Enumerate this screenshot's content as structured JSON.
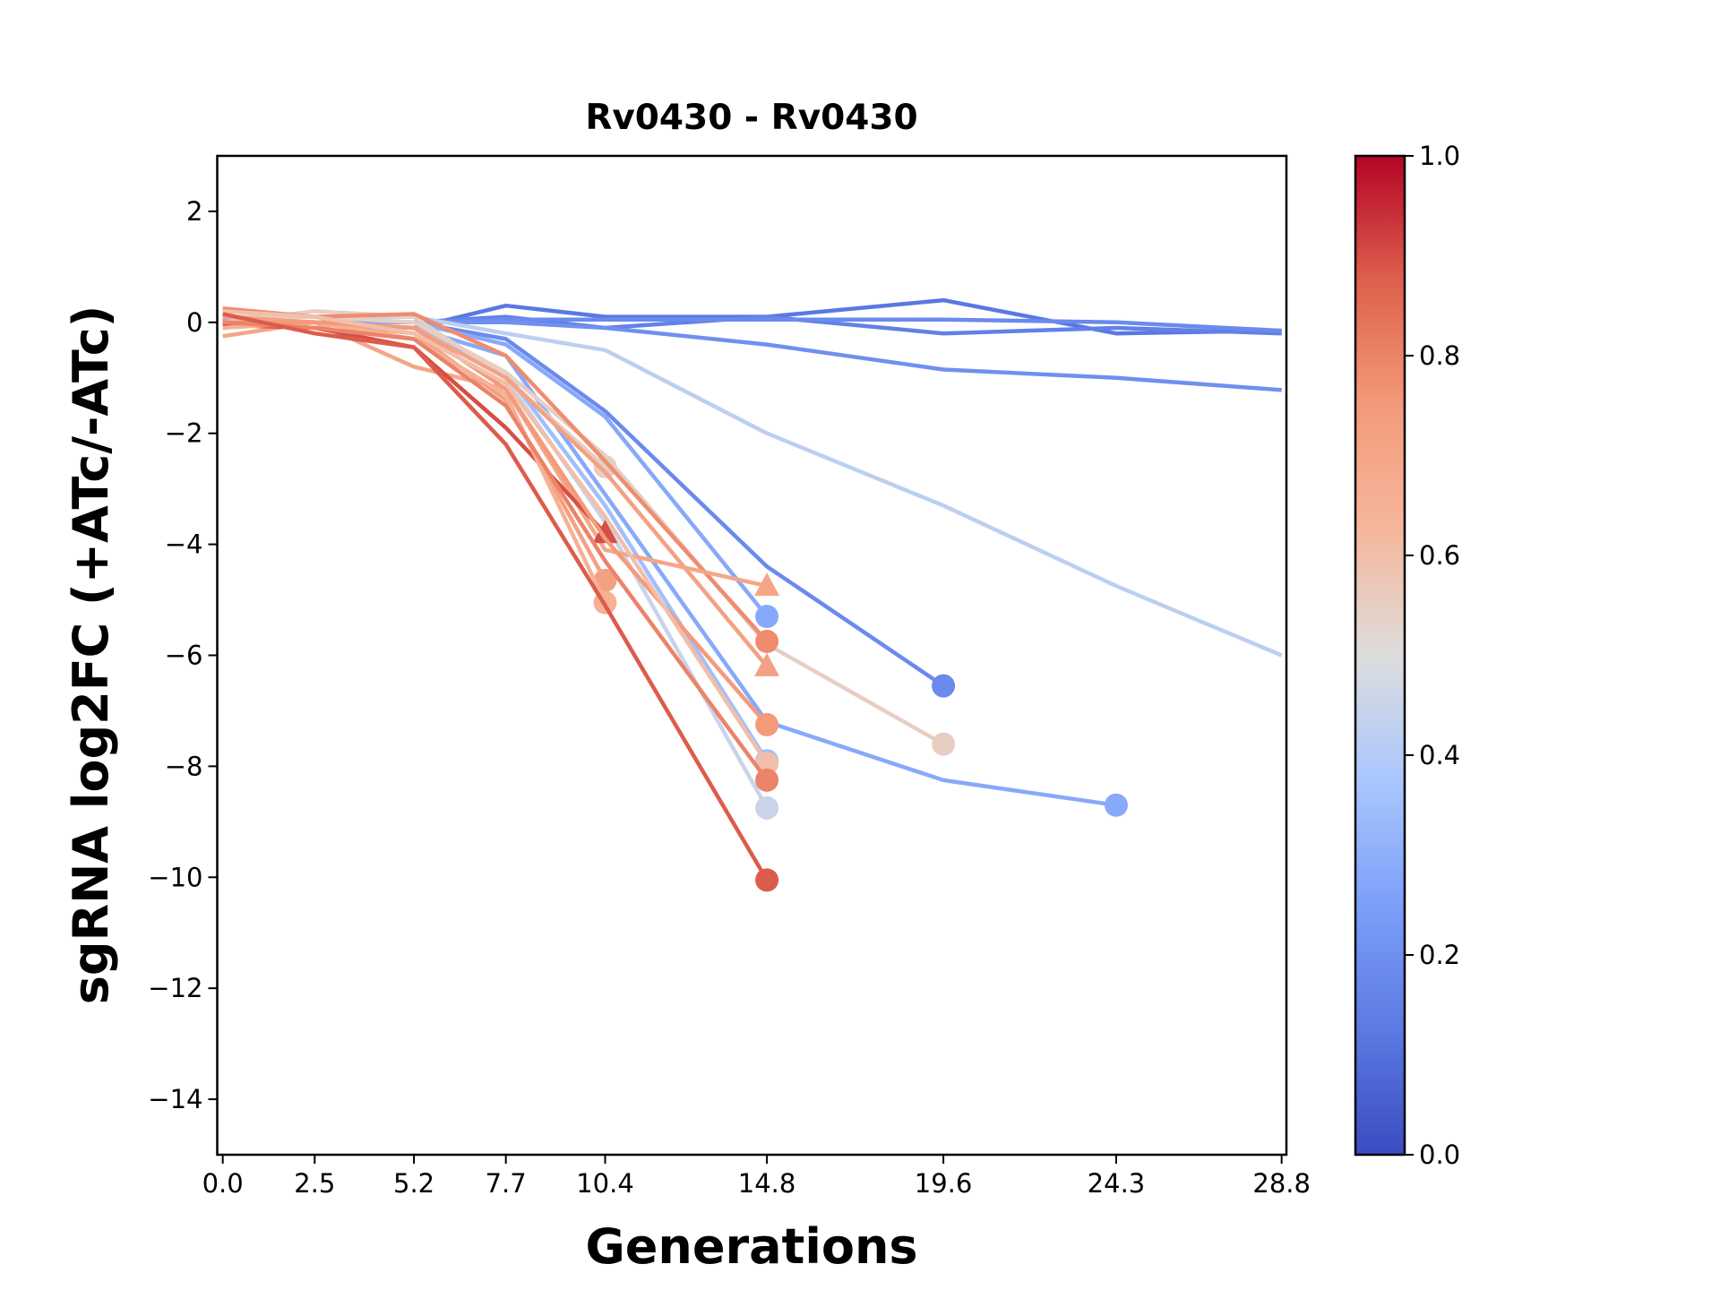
{
  "chart_data": {
    "type": "line",
    "title": "Rv0430 - Rv0430",
    "xlabel": "Generations",
    "ylabel": "sgRNA log2FC (+ATc/-ATc)",
    "xlim": [
      -0.15,
      28.93
    ],
    "ylim": [
      -15,
      3
    ],
    "xticks": [
      0.0,
      2.5,
      5.2,
      7.7,
      10.4,
      14.8,
      19.6,
      24.3,
      28.8
    ],
    "xtick_labels": [
      "0.0",
      "2.5",
      "5.2",
      "7.7",
      "10.4",
      "14.8",
      "19.6",
      "24.3",
      "28.8"
    ],
    "yticks": [
      2,
      0,
      -2,
      -4,
      -6,
      -8,
      -10,
      -12,
      -14
    ],
    "ytick_labels": [
      "2",
      "0",
      "−2",
      "−4",
      "−6",
      "−8",
      "−10",
      "−12",
      "−14"
    ],
    "grid": false,
    "colorbar": {
      "colormap": "coolwarm",
      "range": [
        0.0,
        1.0
      ],
      "ticks": [
        0.0,
        0.2,
        0.4,
        0.6,
        0.8,
        1.0
      ],
      "tick_labels": [
        "0.0",
        "0.2",
        "0.4",
        "0.6",
        "0.8",
        "1.0"
      ]
    },
    "series": [
      {
        "c": 0.12,
        "marker": "none",
        "x": [
          0,
          2.5,
          5.2,
          7.7,
          10.4,
          14.8,
          19.6,
          24.3,
          28.8
        ],
        "y": [
          0.05,
          0,
          -0.1,
          0.3,
          0.1,
          0.1,
          0.4,
          -0.2,
          -0.15
        ]
      },
      {
        "c": 0.15,
        "marker": "none",
        "x": [
          0,
          2.5,
          5.2,
          7.7,
          10.4,
          14.8,
          19.6,
          24.3,
          28.8
        ],
        "y": [
          0,
          0,
          0,
          0.1,
          -0.1,
          0.1,
          -0.2,
          -0.1,
          -0.2
        ]
      },
      {
        "c": 0.18,
        "marker": "none",
        "x": [
          0,
          2.5,
          5.2,
          7.7,
          10.4,
          14.8,
          19.6,
          24.3,
          28.8
        ],
        "y": [
          0,
          0,
          0,
          0.05,
          0.05,
          0.05,
          0.05,
          0,
          -0.15
        ]
      },
      {
        "c": 0.2,
        "marker": "none",
        "x": [
          0,
          2.5,
          5.2,
          7.7,
          10.4,
          14.8,
          19.6,
          24.3,
          28.8
        ],
        "y": [
          0,
          0,
          0,
          0,
          -0.1,
          -0.4,
          -0.85,
          -1.0,
          -1.22
        ]
      },
      {
        "c": 0.42,
        "marker": "none",
        "x": [
          0,
          2.5,
          5.2,
          7.7,
          10.4,
          14.8,
          19.6,
          24.3,
          28.8
        ],
        "y": [
          0.1,
          0.1,
          0.1,
          -0.2,
          -0.5,
          -2.0,
          -3.3,
          -4.75,
          -6.0
        ]
      },
      {
        "c": 0.18,
        "marker": "circle",
        "x": [
          0,
          2.5,
          5.2,
          7.7,
          10.4,
          14.8,
          19.6
        ],
        "y": [
          0,
          0,
          0,
          -0.3,
          -1.6,
          -4.4,
          -6.55
        ]
      },
      {
        "c": 0.28,
        "marker": "circle",
        "x": [
          0,
          2.5,
          5.2,
          7.7,
          10.4,
          14.8,
          19.6,
          24.3
        ],
        "y": [
          0.05,
          0,
          -0.1,
          -0.6,
          -3.1,
          -7.2,
          -8.25,
          -8.7
        ]
      },
      {
        "c": 0.28,
        "marker": "circle",
        "x": [
          0,
          2.5,
          5.2,
          7.7,
          10.4,
          14.8
        ],
        "y": [
          0,
          0,
          0,
          -0.4,
          -1.7,
          -5.3
        ]
      },
      {
        "c": 0.35,
        "marker": "circle",
        "x": [
          0,
          2.5,
          5.2,
          7.7,
          10.4,
          14.8
        ],
        "y": [
          0,
          0,
          -0.1,
          -0.9,
          -3.3,
          -7.9
        ]
      },
      {
        "c": 0.45,
        "marker": "circle",
        "x": [
          0,
          2.5,
          5.2,
          7.7,
          10.4,
          14.8
        ],
        "y": [
          0.1,
          0,
          -0.1,
          -1.0,
          -3.6,
          -8.75
        ]
      },
      {
        "c": 0.55,
        "marker": "circle",
        "x": [
          0,
          2.5,
          5.2,
          7.7,
          10.4
        ],
        "y": [
          0,
          0.2,
          0.1,
          -1.0,
          -2.6
        ]
      },
      {
        "c": 0.55,
        "marker": "circle",
        "x": [
          0,
          2.5,
          5.2,
          7.7,
          10.4,
          14.8,
          19.6
        ],
        "y": [
          0.1,
          0.1,
          0,
          -0.9,
          -2.4,
          -5.8,
          -7.6
        ]
      },
      {
        "c": 0.72,
        "marker": "triangle",
        "x": [
          0,
          2.5,
          5.2,
          7.7,
          10.4,
          14.8
        ],
        "y": [
          0.1,
          0,
          -0.1,
          -1.0,
          -2.7,
          -6.2
        ]
      },
      {
        "c": 0.78,
        "marker": "circle",
        "x": [
          0,
          2.5,
          5.2,
          7.7,
          10.4,
          14.8
        ],
        "y": [
          0.25,
          0.1,
          0.15,
          -0.6,
          -2.5,
          -5.75
        ]
      },
      {
        "c": 0.7,
        "marker": "triangle",
        "x": [
          0,
          2.5,
          5.2,
          7.7,
          10.4,
          14.8
        ],
        "y": [
          -0.25,
          0,
          -0.8,
          -1.2,
          -4.1,
          -4.75
        ]
      },
      {
        "c": 0.9,
        "marker": "triangle",
        "x": [
          0,
          2.5,
          5.2,
          7.7,
          10.4
        ],
        "y": [
          -0.05,
          -0.1,
          -0.45,
          -1.9,
          -3.8
        ]
      },
      {
        "c": 0.72,
        "marker": "circle",
        "x": [
          0,
          2.5,
          5.2,
          7.7,
          10.4
        ],
        "y": [
          0.1,
          0,
          -0.2,
          -1.4,
          -4.65
        ]
      },
      {
        "c": 0.65,
        "marker": "circle",
        "x": [
          0,
          2.5,
          5.2,
          7.7,
          10.4
        ],
        "y": [
          -0.1,
          0,
          -0.3,
          -1.3,
          -5.05
        ]
      },
      {
        "c": 0.75,
        "marker": "circle",
        "x": [
          0,
          2.5,
          5.2,
          7.7,
          10.4,
          14.8
        ],
        "y": [
          0,
          0,
          -0.1,
          -1.2,
          -3.9,
          -7.25
        ]
      },
      {
        "c": 0.6,
        "marker": "circle",
        "x": [
          0,
          2.5,
          5.2,
          7.7,
          10.4,
          14.8
        ],
        "y": [
          0.2,
          0.1,
          -0.2,
          -1.1,
          -3.5,
          -7.95
        ]
      },
      {
        "c": 0.8,
        "marker": "circle",
        "x": [
          0,
          2.5,
          5.2,
          7.7,
          10.4,
          14.8
        ],
        "y": [
          0,
          -0.1,
          -0.3,
          -1.5,
          -4.3,
          -8.25
        ]
      },
      {
        "c": 0.88,
        "marker": "circle",
        "x": [
          0,
          2.5,
          5.2,
          7.7,
          10.4,
          14.8
        ],
        "y": [
          0.15,
          -0.2,
          -0.45,
          -2.2,
          -5.1,
          -10.05
        ]
      }
    ]
  }
}
